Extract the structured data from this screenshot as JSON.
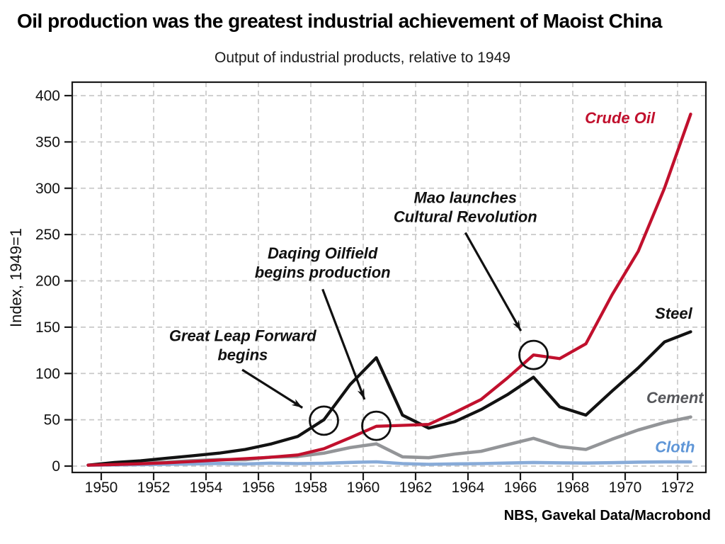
{
  "page": {
    "title": "Oil production was the greatest industrial achievement of Maoist China",
    "subtitle": "Output of industrial products, relative to 1949",
    "source": "NBS, Gavekal Data/Macrobond"
  },
  "chart_data": {
    "type": "line",
    "title": "Oil production was the greatest industrial achievement of Maoist China",
    "subtitle": "Output of industrial products, relative to 1949",
    "ylabel": "Index, 1949=1",
    "source": "NBS, Gavekal Data/Macrobond",
    "grid": "dashed",
    "legend_position": "inline-labels",
    "x_years": [
      1949,
      1950,
      1951,
      1952,
      1953,
      1954,
      1955,
      1956,
      1957,
      1958,
      1959,
      1960,
      1961,
      1962,
      1963,
      1964,
      1965,
      1966,
      1967,
      1968,
      1969,
      1970,
      1971,
      1972
    ],
    "xticks": [
      1950,
      1952,
      1954,
      1956,
      1958,
      1960,
      1962,
      1964,
      1966,
      1968,
      1970,
      1972
    ],
    "yticks": [
      0,
      50,
      100,
      150,
      200,
      250,
      300,
      350,
      400
    ],
    "xlim": [
      1948.9,
      1973.1
    ],
    "ylim": [
      -7,
      415
    ],
    "series": [
      {
        "name": "Cement",
        "color": "#939598",
        "label_color": "#55565a",
        "values": [
          1,
          2.1,
          3.8,
          4.3,
          5.9,
          7,
          6.8,
          9.7,
          10.4,
          14,
          20,
          24,
          10,
          9,
          13,
          16,
          23,
          30,
          21,
          18,
          29,
          39,
          47,
          53
        ],
        "label_pos": {
          "year": 1971.9,
          "value": 68
        }
      },
      {
        "name": "Cloth",
        "color": "#88abd8",
        "label_color": "#5f96d7",
        "values": [
          1,
          1.3,
          1.6,
          2,
          2.4,
          2.8,
          2.3,
          3.1,
          2.7,
          3,
          4,
          4.6,
          2.7,
          1.9,
          2.4,
          2.7,
          3.3,
          3.9,
          3.5,
          3.3,
          3.7,
          4.3,
          4.5,
          4.5
        ],
        "label_pos": {
          "year": 1971.9,
          "value": 15
        }
      },
      {
        "name": "Steel",
        "color": "#121212",
        "label_color": "#121212",
        "values": [
          1,
          3.9,
          5.7,
          8.5,
          11.2,
          14,
          18,
          24,
          32,
          50,
          88,
          117,
          55,
          41,
          48,
          61,
          77,
          96,
          64,
          55,
          81,
          106,
          134,
          145
        ],
        "label_pos": {
          "year": 1971.85,
          "value": 159
        }
      },
      {
        "name": "Crude Oil",
        "color": "#c1102d",
        "label_color": "#c1102d",
        "values": [
          1,
          1.7,
          2.5,
          3.6,
          5,
          6.5,
          8,
          9.6,
          12,
          18.7,
          30.6,
          43,
          44,
          45,
          58,
          72,
          95,
          120,
          116,
          132,
          185,
          232,
          300,
          380
        ],
        "label_pos": {
          "year": 1969.8,
          "value": 370
        }
      }
    ],
    "annotations": [
      {
        "lines": [
          "Great Leap Forward",
          "begins"
        ],
        "text_anchor": {
          "year": 1955.4,
          "value": 135
        },
        "arrow": {
          "from": {
            "year": 1955.38,
            "value": 104
          },
          "to": {
            "year": 1957.68,
            "value": 63
          }
        },
        "circle": {
          "year": 1958.5,
          "value": 49
        }
      },
      {
        "lines": [
          "Daqing Oilfield",
          "begins production"
        ],
        "text_anchor": {
          "year": 1958.45,
          "value": 224
        },
        "arrow": {
          "from": {
            "year": 1958.45,
            "value": 191
          },
          "to": {
            "year": 1960.05,
            "value": 72
          }
        },
        "circle": {
          "year": 1960.5,
          "value": 43.5
        }
      },
      {
        "lines": [
          "Mao launches",
          "Cultural Revolution"
        ],
        "text_anchor": {
          "year": 1963.9,
          "value": 284
        },
        "arrow": {
          "from": {
            "year": 1963.9,
            "value": 252
          },
          "to": {
            "year": 1966.02,
            "value": 146
          }
        },
        "circle": {
          "year": 1966.5,
          "value": 120
        }
      }
    ]
  }
}
